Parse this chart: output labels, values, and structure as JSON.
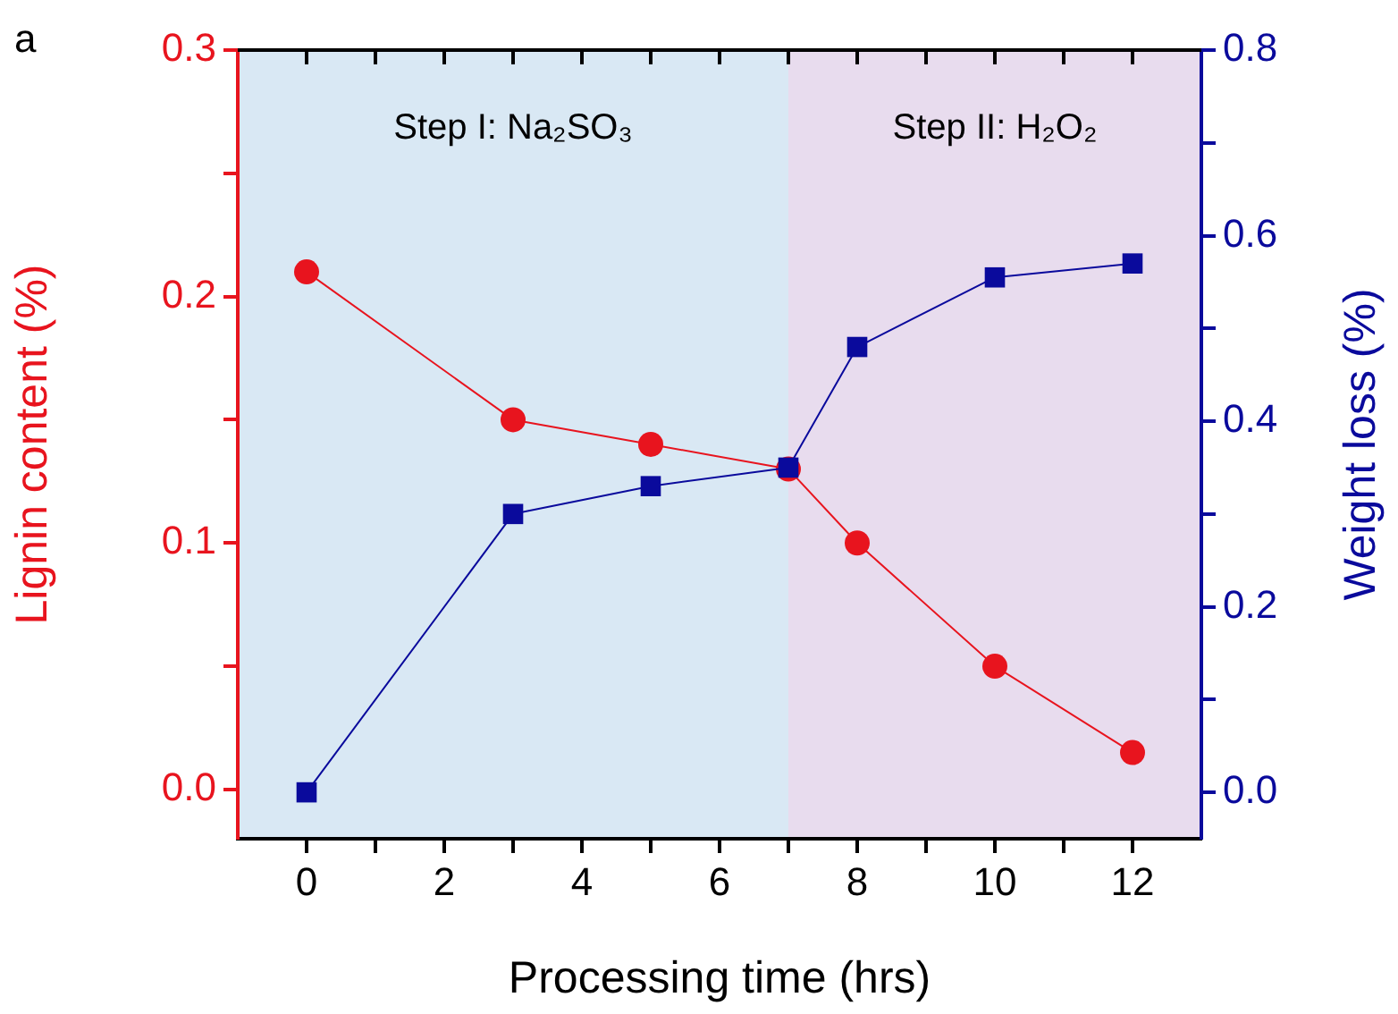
{
  "chart_data": {
    "type": "line",
    "xlabel": "Processing time (hrs)",
    "ylabel": "Lignin content (%)",
    "y2label": "Weight loss (%)",
    "x": [
      0,
      3,
      5,
      7,
      8,
      10,
      12
    ],
    "series": [
      {
        "color": "#e8141e",
        "marker": "circle",
        "values": [
          0.21,
          0.15,
          0.14,
          0.13,
          0.1,
          0.05,
          0.015
        ]
      },
      {
        "color": "#0a0a9c",
        "marker": "square",
        "axis": "y2",
        "values": [
          0,
          0.3,
          0.33,
          0.35,
          0.48,
          0.555,
          0.57
        ]
      }
    ],
    "xlim": [
      -1,
      13
    ],
    "ylim": [
      -0.02,
      0.3
    ],
    "y2lim": [
      -0.05,
      0.8
    ],
    "xticks": [
      0,
      {
        "value": 1,
        "label": null
      },
      2,
      {
        "value": 3,
        "label": null
      },
      4,
      {
        "value": 5,
        "label": null
      },
      6,
      {
        "value": 7,
        "label": null
      },
      8,
      {
        "value": 9,
        "label": null
      },
      10,
      {
        "value": 11,
        "label": null
      },
      12
    ],
    "yticks": [
      {
        "value": 0,
        "label": "0.0"
      },
      {
        "value": 0.05,
        "label": null
      },
      {
        "value": 0.1,
        "label": "0.1"
      },
      {
        "value": 0.15,
        "label": null
      },
      {
        "value": 0.2,
        "label": "0.2"
      },
      {
        "value": 0.25,
        "label": null
      },
      {
        "value": 0.3,
        "label": "0.3"
      }
    ],
    "y2ticks": [
      {
        "value": 0,
        "label": "0.0"
      },
      {
        "value": 0.1,
        "label": null
      },
      {
        "value": 0.2,
        "label": "0.2"
      },
      {
        "value": 0.3,
        "label": null
      },
      {
        "value": 0.4,
        "label": "0.4"
      },
      {
        "value": 0.5,
        "label": null
      },
      {
        "value": 0.6,
        "label": "0.6"
      },
      {
        "value": 0.7,
        "label": null
      },
      {
        "value": 0.8,
        "label": "0.8"
      }
    ],
    "bands": [
      {
        "axis": "x",
        "from": -1,
        "to": 7,
        "label": "Step I: Na₂SO₃",
        "color": "#d9e8f4"
      },
      {
        "axis": "x",
        "from": 7,
        "to": 13,
        "label": "Step II: H₂O₂",
        "color": "#e8dcee"
      }
    ],
    "annotations": [
      "a"
    ],
    "grid": false,
    "legend": false,
    "line_style": "solid"
  }
}
